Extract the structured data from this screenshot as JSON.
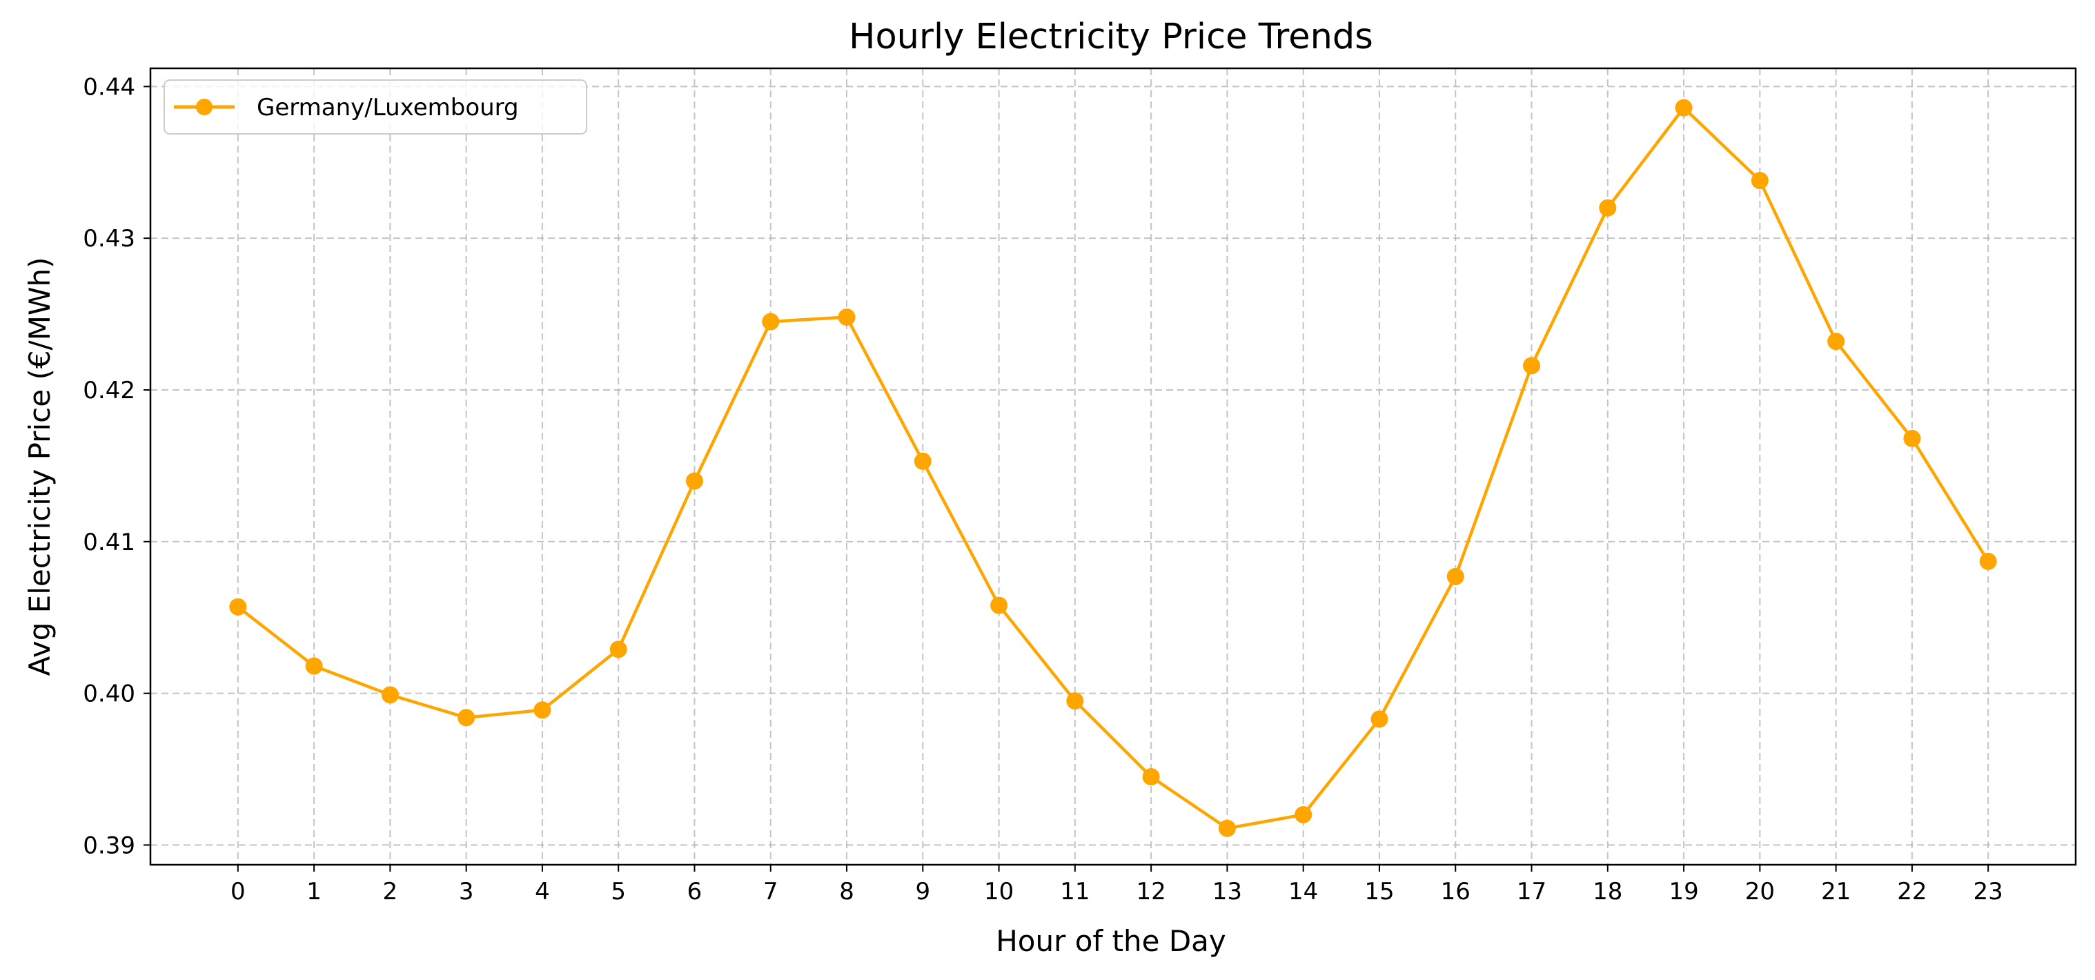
{
  "chart_data": {
    "type": "line",
    "title": "Hourly Electricity Price Trends",
    "xlabel": "Hour of the Day",
    "ylabel": "Avg Electricity Price (€/MWh)",
    "x": [
      0,
      1,
      2,
      3,
      4,
      5,
      6,
      7,
      8,
      9,
      10,
      11,
      12,
      13,
      14,
      15,
      16,
      17,
      18,
      19,
      20,
      21,
      22,
      23
    ],
    "series": [
      {
        "name": "Germany/Luxembourg",
        "color": "#ffa500",
        "values": [
          0.4057,
          0.4018,
          0.3999,
          0.3984,
          0.3989,
          0.4029,
          0.414,
          0.4245,
          0.4248,
          0.4153,
          0.4058,
          0.3995,
          0.3945,
          0.3911,
          0.392,
          0.3983,
          0.4077,
          0.4216,
          0.432,
          0.4386,
          0.4338,
          0.4232,
          0.4168,
          0.4087
        ]
      }
    ],
    "xlim": [
      -1.15,
      24.15
    ],
    "ylim": [
      0.3887,
      0.4412
    ],
    "yticks": [
      0.39,
      0.4,
      0.41,
      0.42,
      0.43,
      0.44
    ],
    "ytick_labels": [
      "0.39",
      "0.40",
      "0.41",
      "0.42",
      "0.43",
      "0.44"
    ],
    "xticks": [
      0,
      1,
      2,
      3,
      4,
      5,
      6,
      7,
      8,
      9,
      10,
      11,
      12,
      13,
      14,
      15,
      16,
      17,
      18,
      19,
      20,
      21,
      22,
      23
    ],
    "xtick_labels": [
      "0",
      "1",
      "2",
      "3",
      "4",
      "5",
      "6",
      "7",
      "8",
      "9",
      "10",
      "11",
      "12",
      "13",
      "14",
      "15",
      "16",
      "17",
      "18",
      "19",
      "20",
      "21",
      "22",
      "23"
    ],
    "grid": true,
    "grid_style": "dashed",
    "legend": "top-left",
    "marker": "circle"
  }
}
